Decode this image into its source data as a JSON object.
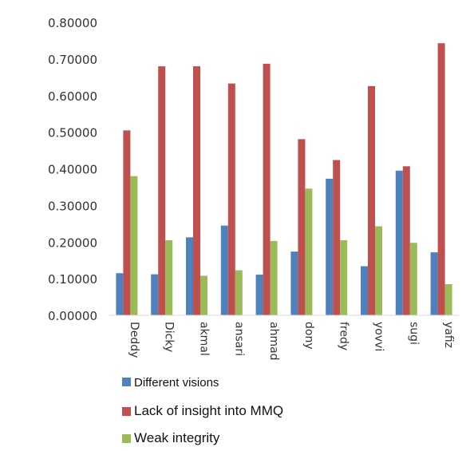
{
  "chart_data": {
    "type": "bar",
    "categories": [
      "Deddy",
      "Dicky",
      "akmal",
      "ansari",
      "ahmad",
      "dony",
      "fredy",
      "yovvi",
      "sugi",
      "yafiz"
    ],
    "series": [
      {
        "name": "Different visions",
        "color": "#4f81bd",
        "values": [
          0.115,
          0.112,
          0.213,
          0.245,
          0.111,
          0.174,
          0.373,
          0.134,
          0.395,
          0.172
        ]
      },
      {
        "name": "Lack of insight into MMQ",
        "color": "#c0504d",
        "values": [
          0.505,
          0.68,
          0.68,
          0.633,
          0.687,
          0.481,
          0.424,
          0.626,
          0.407,
          0.743
        ]
      },
      {
        "name": "Weak integrity",
        "color": "#9bbb59",
        "values": [
          0.38,
          0.205,
          0.108,
          0.123,
          0.203,
          0.346,
          0.205,
          0.243,
          0.198,
          0.085
        ]
      }
    ],
    "ylim": [
      0,
      0.8
    ],
    "yticks": [
      "0.00000",
      "0.10000",
      "0.20000",
      "0.30000",
      "0.40000",
      "0.50000",
      "0.60000",
      "0.70000",
      "0.80000"
    ],
    "grid": false,
    "legend_position": "bottom"
  }
}
